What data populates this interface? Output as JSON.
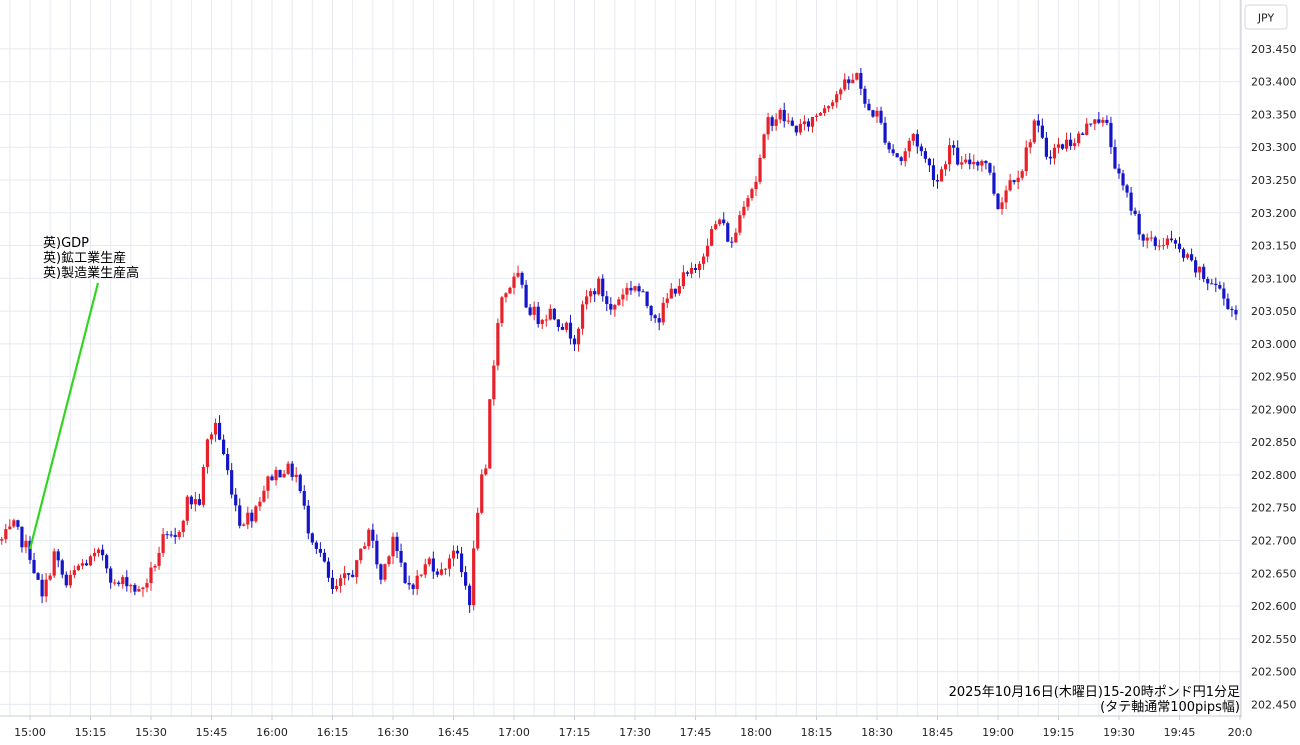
{
  "chart_data": {
    "type": "candlestick",
    "currency_label": "JPY",
    "interval_minutes": 1,
    "start_time": "15:00",
    "ylim": [
      202.43,
      203.47
    ],
    "y_ticks": [
      "203.450",
      "203.400",
      "203.350",
      "203.300",
      "203.250",
      "203.200",
      "203.150",
      "203.100",
      "203.050",
      "203.000",
      "202.950",
      "202.900",
      "202.850",
      "202.800",
      "202.750",
      "202.700",
      "202.650",
      "202.600",
      "202.550",
      "202.500",
      "202.450"
    ],
    "x_ticks": [
      "15:00",
      "15:15",
      "15:30",
      "15:45",
      "16:00",
      "16:15",
      "16:30",
      "16:45",
      "17:00",
      "17:15",
      "17:30",
      "17:45",
      "18:00",
      "18:15",
      "18:30",
      "18:45",
      "19:00",
      "19:15",
      "19:30",
      "19:45",
      "20:0"
    ],
    "grid": true,
    "colors": {
      "up": "#e8202a",
      "down": "#1515c8",
      "annotation_line": "#32d620"
    },
    "annotation": {
      "lines": [
        "英)GDP",
        "英)鉱工業生産",
        "英)製造業生産高"
      ],
      "time": "15:00"
    },
    "caption": [
      "2025年10月16日(木曜日)15-20時ポンド円1分足",
      "(タテ軸通常100pips幅)"
    ],
    "anchors": [
      [
        "14:53",
        202.7
      ],
      [
        "14:56",
        202.72
      ],
      [
        "14:58",
        202.7
      ],
      [
        "15:00",
        202.68
      ],
      [
        "15:03",
        202.61
      ],
      [
        "15:06",
        202.68
      ],
      [
        "15:09",
        202.63
      ],
      [
        "15:12",
        202.66
      ],
      [
        "15:15",
        202.67
      ],
      [
        "15:18",
        202.68
      ],
      [
        "15:21",
        202.63
      ],
      [
        "15:24",
        202.64
      ],
      [
        "15:27",
        202.62
      ],
      [
        "15:30",
        202.65
      ],
      [
        "15:33",
        202.7
      ],
      [
        "15:36",
        202.7
      ],
      [
        "15:39",
        202.76
      ],
      [
        "15:42",
        202.76
      ],
      [
        "15:44",
        202.85
      ],
      [
        "15:46",
        202.88
      ],
      [
        "15:48",
        202.83
      ],
      [
        "15:50",
        202.78
      ],
      [
        "15:52",
        202.73
      ],
      [
        "15:55",
        202.74
      ],
      [
        "15:58",
        202.78
      ],
      [
        "16:00",
        202.8
      ],
      [
        "16:03",
        202.81
      ],
      [
        "16:06",
        202.8
      ],
      [
        "16:09",
        202.72
      ],
      [
        "16:12",
        202.68
      ],
      [
        "16:15",
        202.62
      ],
      [
        "16:18",
        202.64
      ],
      [
        "16:21",
        202.66
      ],
      [
        "16:24",
        202.72
      ],
      [
        "16:27",
        202.64
      ],
      [
        "16:30",
        202.71
      ],
      [
        "16:33",
        202.63
      ],
      [
        "16:36",
        202.64
      ],
      [
        "16:39",
        202.67
      ],
      [
        "16:42",
        202.65
      ],
      [
        "16:45",
        202.69
      ],
      [
        "16:48",
        202.63
      ],
      [
        "16:49",
        202.61
      ],
      [
        "16:50",
        202.68
      ],
      [
        "16:51",
        202.75
      ],
      [
        "16:52",
        202.79
      ],
      [
        "16:53",
        202.8
      ],
      [
        "16:54",
        202.91
      ],
      [
        "16:55",
        202.97
      ],
      [
        "16:56",
        203.04
      ],
      [
        "16:57",
        203.07
      ],
      [
        "16:59",
        203.09
      ],
      [
        "17:01",
        203.1
      ],
      [
        "17:03",
        203.06
      ],
      [
        "17:06",
        203.04
      ],
      [
        "17:09",
        203.05
      ],
      [
        "17:12",
        203.03
      ],
      [
        "17:15",
        203.01
      ],
      [
        "17:18",
        203.07
      ],
      [
        "17:21",
        203.09
      ],
      [
        "17:24",
        203.05
      ],
      [
        "17:27",
        203.08
      ],
      [
        "17:30",
        203.09
      ],
      [
        "17:33",
        203.06
      ],
      [
        "17:36",
        203.04
      ],
      [
        "17:39",
        203.08
      ],
      [
        "17:42",
        203.1
      ],
      [
        "17:45",
        203.11
      ],
      [
        "17:48",
        203.16
      ],
      [
        "17:51",
        203.19
      ],
      [
        "17:54",
        203.15
      ],
      [
        "17:57",
        203.22
      ],
      [
        "18:00",
        203.25
      ],
      [
        "18:03",
        203.34
      ],
      [
        "18:06",
        203.35
      ],
      [
        "18:09",
        203.33
      ],
      [
        "18:12",
        203.33
      ],
      [
        "18:15",
        203.35
      ],
      [
        "18:18",
        203.37
      ],
      [
        "18:21",
        203.39
      ],
      [
        "18:24",
        203.4
      ],
      [
        "18:25",
        203.42
      ],
      [
        "18:27",
        203.36
      ],
      [
        "18:30",
        203.35
      ],
      [
        "18:33",
        203.3
      ],
      [
        "18:36",
        203.28
      ],
      [
        "18:39",
        203.32
      ],
      [
        "18:42",
        203.28
      ],
      [
        "18:45",
        203.25
      ],
      [
        "18:48",
        203.3
      ],
      [
        "18:51",
        203.27
      ],
      [
        "18:54",
        203.28
      ],
      [
        "18:57",
        203.28
      ],
      [
        "19:00",
        203.21
      ],
      [
        "19:03",
        203.25
      ],
      [
        "19:06",
        203.27
      ],
      [
        "19:09",
        203.34
      ],
      [
        "19:12",
        203.29
      ],
      [
        "19:15",
        203.3
      ],
      [
        "19:18",
        203.31
      ],
      [
        "19:21",
        203.32
      ],
      [
        "19:24",
        203.35
      ],
      [
        "19:27",
        203.33
      ],
      [
        "19:30",
        203.25
      ],
      [
        "19:33",
        203.21
      ],
      [
        "19:36",
        203.16
      ],
      [
        "19:39",
        203.15
      ],
      [
        "19:42",
        203.16
      ],
      [
        "19:45",
        203.14
      ],
      [
        "19:48",
        203.12
      ],
      [
        "19:51",
        203.1
      ],
      [
        "19:54",
        203.09
      ],
      [
        "19:56",
        203.07
      ],
      [
        "20:01",
        203.03
      ]
    ]
  }
}
